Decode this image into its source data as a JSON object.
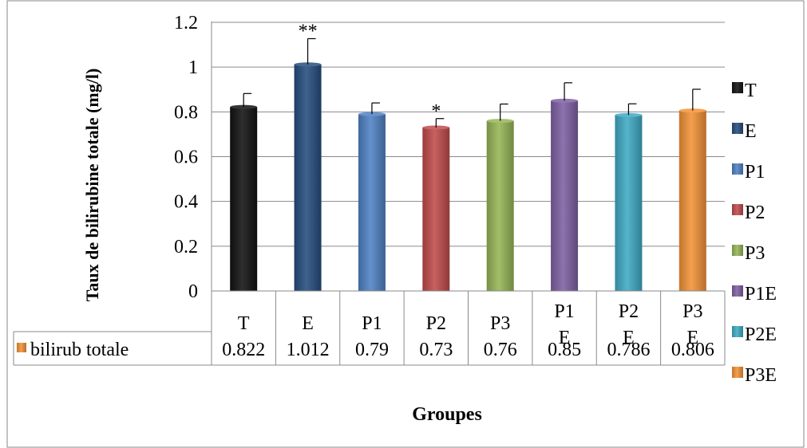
{
  "chart_data": {
    "type": "bar",
    "categories": [
      "T",
      "E",
      "P1",
      "P2",
      "P3",
      "P1E",
      "P2E",
      "P3E"
    ],
    "category_labels": [
      [
        "T"
      ],
      [
        "E"
      ],
      [
        "P1"
      ],
      [
        "P2"
      ],
      [
        "P3"
      ],
      [
        "P1",
        "E"
      ],
      [
        "P2",
        "E"
      ],
      [
        "P3",
        "E"
      ]
    ],
    "series": [
      {
        "name": "bilirub totale",
        "values": [
          0.822,
          1.012,
          0.79,
          0.73,
          0.76,
          0.85,
          0.786,
          0.806
        ]
      }
    ],
    "table_values": [
      "0.822",
      "1.012",
      "0.79",
      "0.73",
      "0.76",
      "0.85",
      "0.786",
      "0.806"
    ],
    "error_bars": [
      0.06,
      0.115,
      0.05,
      0.04,
      0.075,
      0.08,
      0.05,
      0.095
    ],
    "significance": [
      "",
      "**",
      "",
      "*",
      "",
      "",
      "",
      ""
    ],
    "colors": [
      "#111111",
      "#254d7e",
      "#4f81c4",
      "#c04b4b",
      "#95b556",
      "#7f60a3",
      "#3eaac4",
      "#f39237"
    ],
    "xlabel": "Groupes",
    "ylabel": "Taux de bilirubine totale (mg/l)",
    "ylim": [
      0,
      1.2
    ],
    "yticks": [
      "0",
      "0.2",
      "0.4",
      "0.6",
      "0.8",
      "1",
      "1.2"
    ],
    "grid": true,
    "legend": {
      "placement": "right",
      "entries": [
        "T",
        "E",
        "P1",
        "P2",
        "P3",
        "P1E",
        "P2E",
        "P3E"
      ]
    },
    "data_table": true
  }
}
